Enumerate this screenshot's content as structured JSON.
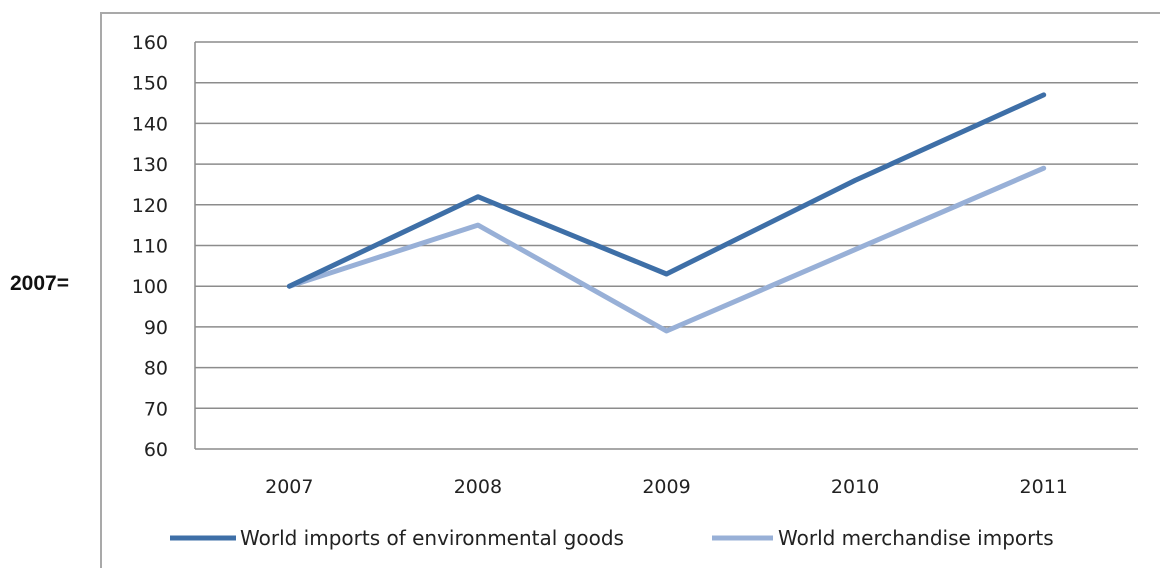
{
  "side_label": "2007=",
  "chart_data": {
    "type": "line",
    "title": "",
    "xlabel": "",
    "ylabel": "2007=",
    "categories": [
      "2007",
      "2008",
      "2009",
      "2010",
      "2011"
    ],
    "ylim": [
      60,
      160
    ],
    "yticks": [
      60,
      70,
      80,
      90,
      100,
      110,
      120,
      130,
      140,
      150,
      160
    ],
    "grid": true,
    "legend_position": "bottom",
    "series": [
      {
        "name": "World imports of environmental goods",
        "color": "#3e6fa7",
        "values": [
          100,
          122,
          103,
          126,
          147
        ]
      },
      {
        "name": "World merchandise imports",
        "color": "#98b0d7",
        "values": [
          100,
          115,
          89,
          109,
          129
        ]
      }
    ]
  }
}
